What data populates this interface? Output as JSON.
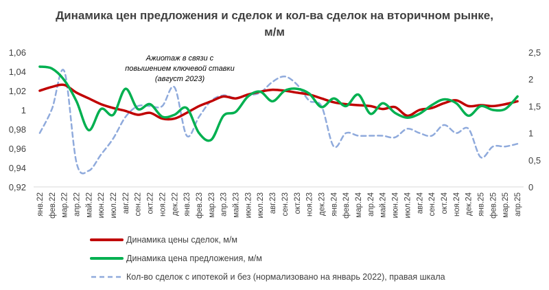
{
  "chart_data": {
    "type": "line",
    "title": [
      "Динамика цен предложения и сделок и кол-ва сделок на вторичном рынке,",
      "м/м"
    ],
    "categories": [
      "янв.22",
      "фев.22",
      "мар.22",
      "апр.22",
      "май.22",
      "июн.22",
      "июл.22",
      "авг.22",
      "сен.22",
      "окт.22",
      "ноя.22",
      "дек.22",
      "янв.23",
      "фев.23",
      "мар.23",
      "апр.23",
      "май.23",
      "июн.23",
      "июл.23",
      "авг.23",
      "сен.23",
      "окт.23",
      "ноя.23",
      "дек.23",
      "янв.24",
      "фев.24",
      "мар.24",
      "апр.24",
      "май.24",
      "июн.24",
      "июл.24",
      "авг.24",
      "сен.24",
      "окт.24",
      "ноя.24",
      "дек.24",
      "янв.25",
      "фев.25",
      "мар.25",
      "апр.25"
    ],
    "y_left": {
      "ylim": [
        0.92,
        1.06
      ],
      "ticks": [
        "0,92",
        "0,94",
        "0,96",
        "0,98",
        "1",
        "1,02",
        "1,04",
        "1,06"
      ]
    },
    "y_right": {
      "ylim": [
        0,
        2.5
      ],
      "ticks": [
        "0",
        "0,5",
        "1",
        "1,5",
        "2",
        "2,5"
      ]
    },
    "grid": false,
    "legend_position": "bottom",
    "series": [
      {
        "name": "Динамика цены сделок, м/м",
        "axis": "left",
        "color": "#c00000",
        "style": "solid",
        "values": [
          1.02,
          1.024,
          1.026,
          1.018,
          1.012,
          1.006,
          1.002,
          0.999,
          0.995,
          0.997,
          0.991,
          0.991,
          0.997,
          1.004,
          1.009,
          1.014,
          1.012,
          1.016,
          1.019,
          1.021,
          1.02,
          1.018,
          1.016,
          1.012,
          1.008,
          1.006,
          1.005,
          1.004,
          1.001,
          1.003,
          0.994,
          1.0,
          1.002,
          1.007,
          1.01,
          1.004,
          1.005,
          1.004,
          1.006,
          1.009
        ]
      },
      {
        "name": "Динамика цена предложения, м/м",
        "axis": "left",
        "color": "#00b050",
        "style": "solid",
        "values": [
          1.045,
          1.043,
          1.031,
          1.009,
          0.979,
          1.001,
          0.995,
          1.022,
          1.001,
          1.006,
          0.993,
          0.995,
          1.002,
          0.976,
          0.969,
          0.994,
          0.998,
          1.014,
          1.019,
          1.009,
          1.02,
          1.022,
          1.017,
          1.003,
          1.012,
          1.004,
          1.016,
          0.996,
          1.007,
          0.997,
          0.992,
          0.996,
          1.005,
          1.011,
          1.007,
          0.994,
          1.004,
          1.0,
          1.001,
          1.014
        ]
      },
      {
        "name": "Кол-во сделок с ипотекой и без (нормализовано на январь 2022),  правая шкала",
        "axis": "right",
        "color": "#8faadc",
        "style": "dashed",
        "values": [
          1.0,
          1.45,
          2.15,
          0.45,
          0.3,
          0.6,
          0.9,
          1.3,
          1.5,
          1.5,
          1.5,
          1.85,
          0.95,
          1.3,
          1.6,
          1.7,
          1.65,
          1.7,
          1.75,
          1.95,
          2.05,
          1.9,
          1.6,
          1.5,
          0.75,
          1.0,
          0.95,
          0.95,
          0.95,
          0.92,
          1.08,
          1.0,
          0.95,
          1.15,
          1.0,
          1.08,
          0.55,
          0.75,
          0.75,
          0.8
        ]
      }
    ],
    "annotations": [
      {
        "lines": [
          "Ажиотаж в связи с",
          "повышением ключевой ставки",
          "(август 2023)"
        ]
      }
    ]
  }
}
